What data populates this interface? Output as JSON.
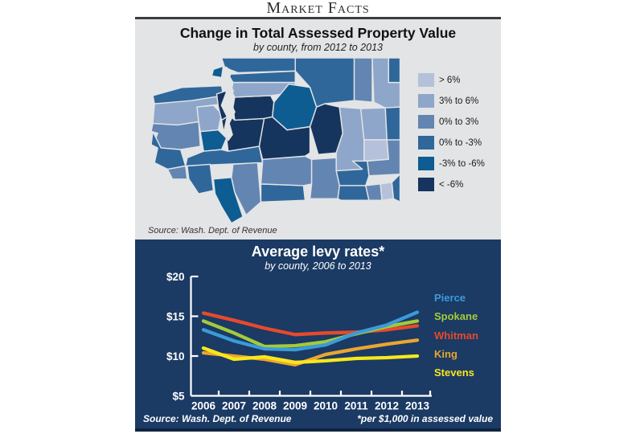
{
  "masthead": {
    "title": "Market Facts"
  },
  "map_panel": {
    "title": "Change in Total Assessed Property Value",
    "subtitle": "by county, from 2012 to 2013",
    "source": "Source: Wash. Dept. of Revenue",
    "background": "#e3e4e6",
    "legend": [
      {
        "label": "> 6%",
        "color": "#b5c1da"
      },
      {
        "label": "3% to 6%",
        "color": "#8ea6c9"
      },
      {
        "label": "0% to 3%",
        "color": "#6385b1"
      },
      {
        "label": "0% to -3%",
        "color": "#2f679b"
      },
      {
        "label": "-3% to -6%",
        "color": "#0d5d92"
      },
      {
        "label": "< -6%",
        "color": "#16355e"
      }
    ],
    "regions": [
      {
        "id": "clallam",
        "bucket": 3
      },
      {
        "id": "jefferson",
        "bucket": 1
      },
      {
        "id": "grays-harbor",
        "bucket": 2
      },
      {
        "id": "mason",
        "bucket": 1
      },
      {
        "id": "kitsap",
        "bucket": 5
      },
      {
        "id": "thurston",
        "bucket": 4
      },
      {
        "id": "pierce",
        "bucket": 5
      },
      {
        "id": "king",
        "bucket": 5
      },
      {
        "id": "whatcom",
        "bucket": 3
      },
      {
        "id": "san-juan",
        "bucket": 4
      },
      {
        "id": "skagit",
        "bucket": 3
      },
      {
        "id": "snohomish",
        "bucket": 1
      },
      {
        "id": "lewis",
        "bucket": 3
      },
      {
        "id": "pacific",
        "bucket": 3
      },
      {
        "id": "wahkiakum",
        "bucket": 2
      },
      {
        "id": "cowlitz",
        "bucket": 3
      },
      {
        "id": "clark",
        "bucket": 4
      },
      {
        "id": "skamania",
        "bucket": 2
      },
      {
        "id": "klickitat",
        "bucket": 3
      },
      {
        "id": "yakima",
        "bucket": 2
      },
      {
        "id": "kittitas",
        "bucket": 5
      },
      {
        "id": "chelan",
        "bucket": 4
      },
      {
        "id": "okanogan",
        "bucket": 3
      },
      {
        "id": "douglas",
        "bucket": 5
      },
      {
        "id": "grant",
        "bucket": 1
      },
      {
        "id": "lincoln",
        "bucket": 1
      },
      {
        "id": "adams",
        "bucket": 0
      },
      {
        "id": "whitman",
        "bucket": 2
      },
      {
        "id": "franklin",
        "bucket": 3
      },
      {
        "id": "benton",
        "bucket": 2
      },
      {
        "id": "walla-walla",
        "bucket": 3
      },
      {
        "id": "columbia",
        "bucket": 2
      },
      {
        "id": "garfield",
        "bucket": 0
      },
      {
        "id": "asotin",
        "bucket": 3
      },
      {
        "id": "ferry",
        "bucket": 2
      },
      {
        "id": "stevens",
        "bucket": 1
      },
      {
        "id": "pend-oreille",
        "bucket": 3
      },
      {
        "id": "spokane",
        "bucket": 3
      }
    ]
  },
  "chart_panel": {
    "title": "Average levy rates*",
    "subtitle": "by county, 2006 to 2013",
    "source": "Source: Wash. Dept. of Revenue",
    "footnote": "*per $1,000 in assessed value",
    "background": "#1b3a64",
    "axis_color": "#ffffff"
  },
  "chart_data": {
    "type": "line",
    "x": [
      2006,
      2007,
      2008,
      2009,
      2010,
      2011,
      2012,
      2013
    ],
    "series": [
      {
        "name": "Pierce",
        "color": "#3b9bd9",
        "values": [
          13.3,
          11.9,
          10.9,
          10.8,
          11.4,
          12.9,
          13.9,
          15.5
        ]
      },
      {
        "name": "Spokane",
        "color": "#a3cb3a",
        "values": [
          14.4,
          12.9,
          11.2,
          11.3,
          11.8,
          12.8,
          13.7,
          14.4
        ]
      },
      {
        "name": "Whitman",
        "color": "#e64a2c",
        "values": [
          15.4,
          14.5,
          13.5,
          12.7,
          12.9,
          13.0,
          13.3,
          13.8
        ]
      },
      {
        "name": "King",
        "color": "#eaa62f",
        "values": [
          10.4,
          10.0,
          9.6,
          8.9,
          10.2,
          10.9,
          11.5,
          12.0
        ]
      },
      {
        "name": "Stevens",
        "color": "#f8e71c",
        "values": [
          11.0,
          9.6,
          9.9,
          9.2,
          9.4,
          9.7,
          9.8,
          10.0
        ]
      }
    ],
    "ylim": [
      5,
      20
    ],
    "ytick_labels": [
      "$5",
      "$10",
      "$15",
      "$20"
    ],
    "yticks": [
      5,
      10,
      15,
      20
    ],
    "grid": false,
    "legend_position": "right"
  }
}
